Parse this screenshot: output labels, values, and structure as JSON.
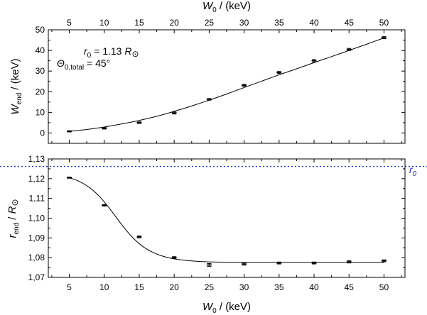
{
  "chart_data": [
    {
      "type": "scatter",
      "panel": "top",
      "xlabel": {
        "symbol": "W",
        "sub": "0",
        "rest": " / (keV)"
      },
      "ylabel": {
        "symbol": "W",
        "sub": "end",
        "rest": " / (keV)"
      },
      "xlim": [
        2,
        53
      ],
      "ylim": [
        -5,
        50
      ],
      "xticks": [
        5,
        10,
        15,
        20,
        25,
        30,
        35,
        40,
        45,
        50
      ],
      "xtick_labels": [
        "5",
        "10",
        "15",
        "20",
        "25",
        "30",
        "35",
        "40",
        "45",
        "50"
      ],
      "yticks": [
        0,
        10,
        20,
        30,
        40,
        50
      ],
      "ytick_labels": [
        "0",
        "10",
        "20",
        "30",
        "40",
        "50"
      ],
      "annotation": {
        "r0": {
          "symbol": "r",
          "sub": "0",
          "rest": " = 1.13 ",
          "unit": "R",
          "unit_sub": "⊙"
        },
        "theta": {
          "symbol": "Θ",
          "sub": "0,total",
          "rest": " = 45°"
        }
      },
      "series": [
        {
          "x": [
            5,
            10,
            15,
            20,
            25,
            30,
            35,
            40,
            45,
            50
          ],
          "y": [
            0.8,
            2.3,
            5.0,
            9.7,
            16.3,
            23.1,
            29.3,
            35.0,
            40.5,
            46.2
          ],
          "yerr": [
            0.3,
            0.4,
            0.4,
            0.5,
            0.4,
            0.5,
            0.5,
            0.6,
            0.5,
            0.5
          ]
        }
      ],
      "fit": {
        "x": [
          5,
          7.5,
          10,
          12.5,
          15,
          17.5,
          20,
          22.5,
          25,
          27.5,
          30,
          32.5,
          35,
          37.5,
          40,
          42.5,
          45,
          47.5,
          50
        ],
        "y": [
          0.8,
          1.7,
          2.9,
          4.4,
          6.1,
          8.1,
          10.5,
          13.1,
          15.9,
          18.9,
          22.0,
          25.1,
          28.2,
          31.1,
          34.1,
          37.0,
          40.0,
          43.0,
          46.1
        ]
      },
      "grid": false
    },
    {
      "type": "scatter",
      "panel": "bottom",
      "xlabel": {
        "symbol": "W",
        "sub": "0",
        "rest": " / (keV)"
      },
      "ylabel": {
        "symbol": "r",
        "sub": "end",
        "rest": " / ",
        "unit": "R",
        "unit_sub": "⊙"
      },
      "xlim": [
        2,
        53
      ],
      "ylim": [
        1.07,
        1.13
      ],
      "xticks": [
        5,
        10,
        15,
        20,
        25,
        30,
        35,
        40,
        45,
        50
      ],
      "xtick_labels": [
        "5",
        "10",
        "15",
        "20",
        "25",
        "30",
        "35",
        "40",
        "45",
        "50"
      ],
      "yticks": [
        1.07,
        1.08,
        1.09,
        1.1,
        1.11,
        1.12,
        1.13
      ],
      "ytick_labels": [
        "1,07",
        "1,08",
        "1,09",
        "1,10",
        "1,11",
        "1,12",
        "1,13"
      ],
      "reference_line": {
        "y": 1.1262,
        "label": "r",
        "label_sub": "0",
        "color": "#1f2fbf",
        "style": "dotted"
      },
      "series": [
        {
          "x": [
            5,
            10,
            15,
            20,
            25,
            30,
            35,
            40,
            45,
            50
          ],
          "y": [
            1.1205,
            1.1065,
            1.0905,
            1.08,
            1.0763,
            1.0768,
            1.0773,
            1.0773,
            1.0779,
            1.0784
          ],
          "yerr": [
            0.0003,
            0.0004,
            0.0005,
            0.0005,
            0.0007,
            0.0006,
            0.0005,
            0.0005,
            0.0006,
            0.0005
          ]
        }
      ],
      "fit": {
        "x": [
          5,
          6.5,
          8,
          9.5,
          11,
          12.5,
          14,
          15.5,
          17,
          18.5,
          20,
          22,
          24,
          27,
          30,
          35,
          40,
          45,
          50
        ],
        "y": [
          1.1205,
          1.1185,
          1.1152,
          1.1103,
          1.1038,
          1.0967,
          1.0904,
          1.0857,
          1.0826,
          1.0806,
          1.0794,
          1.0785,
          1.078,
          1.0777,
          1.0776,
          1.0776,
          1.0776,
          1.0776,
          1.0776
        ]
      },
      "grid": false
    }
  ]
}
